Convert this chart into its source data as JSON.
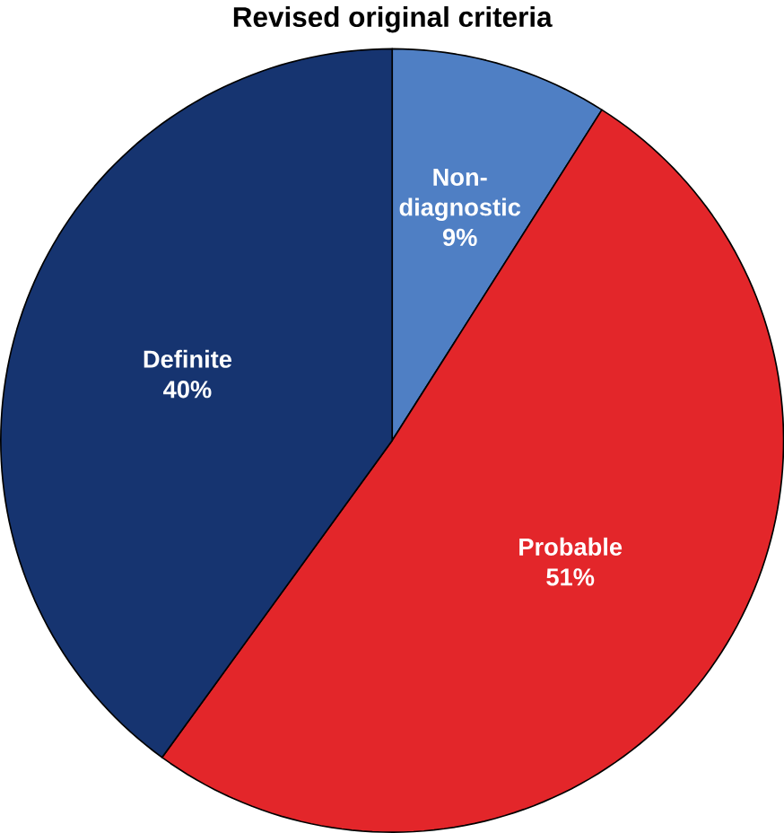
{
  "chart_data": {
    "type": "pie",
    "title": "Revised original criteria",
    "categories": [
      "Non-diagnostic",
      "Probable",
      "Definite"
    ],
    "values": [
      9,
      51,
      40
    ],
    "value_labels": [
      "9%",
      "51%",
      "40%"
    ],
    "colors": [
      "#4f7fc4",
      "#e3262a",
      "#163470"
    ]
  }
}
